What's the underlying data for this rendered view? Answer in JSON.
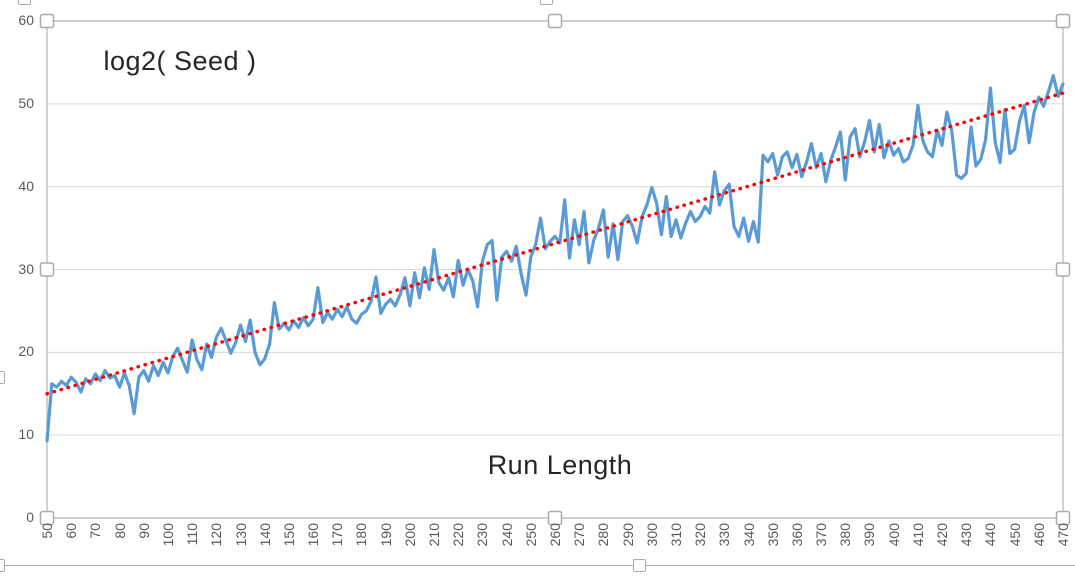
{
  "chart": {
    "kind": "excel-scatter-line-chart",
    "selected_element": "plot-area",
    "y_ticks": [
      0,
      10,
      20,
      30,
      40,
      50,
      60
    ],
    "x_ticks": [
      50,
      60,
      70,
      80,
      90,
      100,
      110,
      120,
      130,
      140,
      150,
      160,
      170,
      180,
      190,
      200,
      210,
      220,
      230,
      240,
      250,
      260,
      270,
      280,
      290,
      300,
      310,
      320,
      330,
      340,
      350,
      360,
      370,
      380,
      390,
      400,
      410,
      420,
      430,
      440,
      450,
      460,
      470
    ]
  },
  "colors": {
    "series": "#5B9BD5",
    "trendline": "#FF0000",
    "gridline": "#D9D9D9",
    "axis_line": "#BFBFBF",
    "tick_text": "#595959",
    "title_text": "#262626",
    "handle_border": "#ABABAB",
    "background": "#FFFFFF"
  },
  "chart_data": {
    "type": "line",
    "title": "",
    "ylabel": "log2( Seed )",
    "xlabel": "Run Length",
    "xlim": [
      50,
      470
    ],
    "ylim": [
      0,
      60
    ],
    "x_tick_step": 10,
    "y_tick_step": 10,
    "grid": "horizontal-only",
    "legend": "none",
    "series": [
      {
        "name": "log2( Seed )",
        "color": "#5B9BD5",
        "x_start": 50,
        "x_step": 2,
        "values": [
          9.3,
          16.2,
          15.8,
          16.5,
          16.0,
          17.0,
          16.4,
          15.2,
          16.8,
          16.2,
          17.4,
          16.6,
          17.8,
          16.9,
          17.2,
          15.8,
          17.5,
          16.0,
          12.6,
          17.0,
          17.8,
          16.5,
          18.4,
          17.2,
          18.8,
          17.5,
          19.5,
          20.5,
          19.0,
          17.6,
          21.5,
          19.1,
          17.9,
          21.0,
          19.4,
          21.8,
          22.9,
          21.4,
          19.9,
          21.2,
          23.3,
          21.3,
          23.9,
          20.0,
          18.5,
          19.2,
          21.0,
          26.0,
          22.8,
          23.5,
          22.7,
          23.8,
          23.0,
          24.2,
          23.2,
          24.0,
          27.8,
          23.6,
          24.8,
          24.0,
          25.2,
          24.3,
          25.5,
          24.0,
          23.5,
          24.6,
          25.0,
          26.2,
          29.1,
          24.7,
          25.8,
          26.4,
          25.6,
          27.0,
          29.0,
          25.6,
          29.6,
          26.6,
          30.2,
          27.6,
          32.4,
          28.4,
          27.5,
          29.0,
          26.7,
          31.1,
          28.1,
          30.0,
          28.6,
          25.5,
          31.0,
          33.0,
          33.5,
          26.3,
          31.5,
          32.2,
          31.0,
          32.8,
          29.5,
          26.9,
          31.5,
          33.0,
          36.2,
          32.5,
          33.4,
          34.0,
          33.2,
          38.4,
          31.4,
          36.0,
          33.0,
          37.0,
          30.8,
          33.5,
          35.0,
          37.2,
          31.5,
          35.5,
          31.2,
          35.8,
          36.5,
          35.2,
          33.2,
          36.4,
          37.8,
          39.9,
          38.0,
          34.2,
          38.8,
          34.0,
          36.0,
          33.8,
          35.6,
          37.0,
          35.8,
          36.4,
          37.6,
          36.8,
          41.8,
          37.8,
          39.5,
          40.3,
          35.2,
          34.0,
          36.2,
          33.4,
          35.8,
          33.3,
          43.8,
          43.0,
          44.0,
          41.4,
          43.6,
          44.2,
          42.3,
          43.9,
          41.2,
          43.0,
          45.2,
          42.3,
          44.0,
          40.6,
          43.2,
          44.8,
          46.6,
          40.8,
          46.0,
          47.0,
          43.6,
          45.4,
          48.0,
          44.2,
          47.5,
          43.5,
          45.5,
          43.8,
          44.6,
          43.0,
          43.4,
          45.0,
          49.8,
          45.6,
          44.2,
          43.6,
          46.8,
          45.0,
          49.0,
          46.8,
          41.4,
          41.0,
          41.6,
          47.2,
          42.5,
          43.3,
          45.7,
          51.9,
          45.3,
          42.9,
          49.3,
          44.0,
          44.5,
          47.9,
          49.8,
          45.3,
          48.9,
          50.8,
          49.7,
          51.5,
          53.4,
          50.9,
          52.4
        ]
      }
    ],
    "trendline": {
      "name": "Linear trendline",
      "style": "dotted",
      "color": "#FF0000",
      "x": [
        50,
        470
      ],
      "y": [
        15.0,
        51.3
      ]
    }
  }
}
